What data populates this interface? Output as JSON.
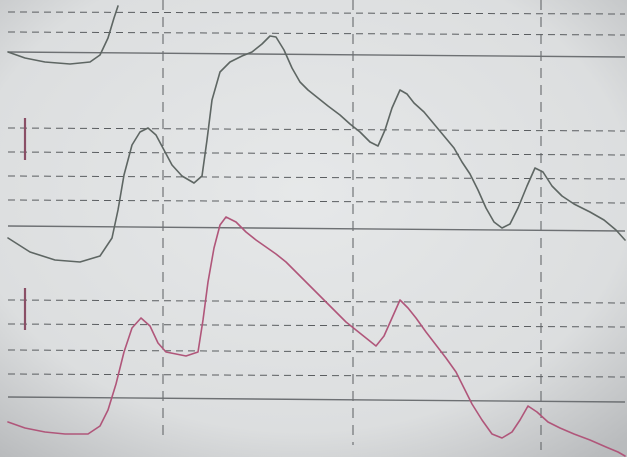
{
  "photo": {
    "subject": "",
    "colors": {
      "paper": "#dcdedf",
      "paper_light": "#e6e8e9",
      "paper_shadow": "#b9bbbd",
      "solid_line": "#6d7073",
      "dashed_line": "#5a5d60",
      "upper_trace": "#5e6663",
      "lower_trace": "#b0567a",
      "calibration_mark": "#8a4f66"
    }
  }
}
